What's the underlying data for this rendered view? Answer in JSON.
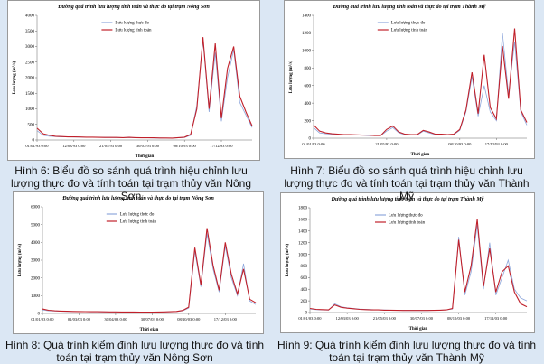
{
  "chart_data": [
    {
      "type": "line",
      "title": "Đường quá trình lưu lượng tính toán và thực đo tại trạm Nông Sơn",
      "x_label": "Thời gian",
      "y_label": "Lưu lượng (m³/s)",
      "categories": [
        "01/01/93 0:00",
        null,
        null,
        null,
        null,
        null,
        "12/03/93 0:00",
        null,
        null,
        null,
        null,
        null,
        "21/05/93 0:00",
        null,
        null,
        null,
        null,
        null,
        "30/07/93 0:00",
        null,
        null,
        null,
        null,
        null,
        "08/10/93 0:00",
        null,
        null,
        null,
        null,
        null,
        "17/12/93 0:00",
        null,
        null,
        null,
        null,
        null
      ],
      "series": [
        {
          "name": "Lưu lượng thực đo",
          "color": "#8fa8dc",
          "values": [
            300,
            150,
            120,
            110,
            100,
            100,
            95,
            90,
            90,
            85,
            85,
            80,
            80,
            75,
            75,
            80,
            70,
            70,
            70,
            65,
            65,
            60,
            60,
            70,
            80,
            150,
            1100,
            3200,
            900,
            2800,
            600,
            2000,
            2900,
            1200,
            800,
            400
          ]
        },
        {
          "name": "Lưu lượng tính toán",
          "color": "#c0202a",
          "values": [
            380,
            200,
            150,
            120,
            110,
            100,
            100,
            95,
            90,
            90,
            85,
            80,
            80,
            80,
            75,
            85,
            75,
            70,
            70,
            70,
            65,
            65,
            60,
            75,
            90,
            180,
            1000,
            3300,
            1000,
            3100,
            700,
            2300,
            3000,
            1400,
            900,
            450
          ]
        }
      ],
      "ylim": [
        0,
        4000
      ],
      "yticks": [
        0,
        500,
        1000,
        1500,
        2000,
        2500,
        3000,
        3500,
        4000
      ],
      "legend": "upper center"
    },
    {
      "type": "line",
      "title": "Đường quá trình lưu lượng tính toán và thực đo tại trạm Thành Mỹ",
      "x_label": "Thời gian",
      "y_label": "Lưu lượng (m³/s)",
      "categories": [
        "01/01/93 0:00",
        null,
        null,
        null,
        null,
        null,
        null,
        null,
        null,
        null,
        null,
        null,
        "21/05/93 0:00",
        null,
        null,
        null,
        null,
        null,
        null,
        null,
        null,
        null,
        null,
        null,
        "08/10/93 0:00",
        null,
        null,
        null,
        null,
        null,
        "17/12/93 0:00",
        null,
        null,
        null,
        null,
        null
      ],
      "series": [
        {
          "name": "Lưu lượng thực đo",
          "color": "#8fa8dc",
          "values": [
            120,
            60,
            50,
            45,
            40,
            40,
            38,
            35,
            35,
            30,
            30,
            30,
            80,
            120,
            60,
            40,
            35,
            35,
            80,
            60,
            40,
            40,
            35,
            40,
            90,
            300,
            700,
            250,
            600,
            300,
            200,
            1200,
            500,
            1100,
            300,
            150
          ]
        },
        {
          "name": "Lưu lượng tính toán",
          "color": "#c0202a",
          "values": [
            150,
            80,
            60,
            50,
            45,
            40,
            40,
            38,
            35,
            35,
            30,
            30,
            100,
            140,
            70,
            45,
            40,
            40,
            90,
            70,
            45,
            45,
            40,
            45,
            100,
            320,
            750,
            280,
            950,
            350,
            220,
            1050,
            450,
            1250,
            320,
            180
          ]
        }
      ],
      "ylim": [
        0,
        1400
      ],
      "yticks": [
        0,
        200,
        400,
        600,
        800,
        1000,
        1200,
        1400
      ],
      "legend": "upper center"
    },
    {
      "type": "line",
      "title": "Đường quá trình lưu lượng tính toán và thực đo tại trạm Nông Sơn",
      "x_label": "Thời gian",
      "y_label": "Lưu lượng (m³/s)",
      "categories": [
        "01/01/03 0:00",
        null,
        null,
        null,
        null,
        null,
        "01/03/03 0:00",
        null,
        null,
        null,
        null,
        null,
        "30/04/03 0:00",
        null,
        null,
        null,
        null,
        null,
        "30/07/03 0:00",
        null,
        null,
        null,
        null,
        null,
        "08/10/03 0:00",
        null,
        null,
        null,
        null,
        null,
        "17/12/03 0:00",
        null,
        null,
        null,
        null,
        null
      ],
      "series": [
        {
          "name": "Lưu lượng thực đo",
          "color": "#8fa8dc",
          "values": [
            200,
            150,
            130,
            120,
            110,
            100,
            100,
            95,
            90,
            90,
            85,
            80,
            80,
            80,
            75,
            75,
            70,
            70,
            70,
            75,
            80,
            90,
            100,
            150,
            300,
            3500,
            1500,
            4500,
            2500,
            1200,
            3800,
            2000,
            1000,
            2800,
            700,
            500
          ]
        },
        {
          "name": "Lưu lượng tính toán",
          "color": "#c0202a",
          "values": [
            250,
            180,
            150,
            130,
            120,
            110,
            105,
            100,
            95,
            95,
            90,
            85,
            85,
            80,
            80,
            80,
            75,
            75,
            75,
            80,
            85,
            95,
            110,
            170,
            350,
            3700,
            1600,
            4800,
            2700,
            1300,
            4000,
            2200,
            1100,
            2500,
            800,
            600
          ]
        }
      ],
      "ylim": [
        0,
        6000
      ],
      "yticks": [
        0,
        1000,
        2000,
        3000,
        4000,
        5000,
        6000
      ],
      "legend": "upper center"
    },
    {
      "type": "line",
      "title": "Đường quá trình lưu lượng tính toán và thực đo tại trạm Thành Mỹ",
      "x_label": "Thời gian",
      "y_label": "Lưu lượng (m³/s)",
      "categories": [
        "01/01/03 0:00",
        null,
        null,
        null,
        null,
        null,
        "12/03/03 0:00",
        null,
        null,
        null,
        null,
        null,
        "21/05/03 0:00",
        null,
        null,
        null,
        null,
        null,
        "30/07/03 0:00",
        null,
        null,
        null,
        null,
        null,
        "08/10/03 0:00",
        null,
        null,
        null,
        null,
        null,
        "17/12/03 0:00",
        null,
        null,
        null,
        null,
        null
      ],
      "series": [
        {
          "name": "Lưu lượng thực đo",
          "color": "#8fa8dc",
          "values": [
            60,
            50,
            45,
            40,
            150,
            100,
            80,
            70,
            60,
            55,
            50,
            45,
            45,
            40,
            40,
            35,
            35,
            35,
            35,
            35,
            40,
            40,
            45,
            60,
            1300,
            300,
            700,
            1500,
            400,
            1200,
            300,
            600,
            900,
            400,
            250,
            200
          ]
        },
        {
          "name": "Lưu lượng tính toán",
          "color": "#c0202a",
          "values": [
            70,
            55,
            50,
            45,
            130,
            90,
            75,
            65,
            55,
            50,
            45,
            45,
            40,
            40,
            38,
            35,
            35,
            35,
            35,
            35,
            38,
            40,
            45,
            70,
            1250,
            350,
            800,
            1600,
            450,
            1100,
            350,
            700,
            800,
            350,
            150,
            100
          ]
        }
      ],
      "ylim": [
        0,
        1800
      ],
      "yticks": [
        0,
        200,
        400,
        600,
        800,
        1000,
        1200,
        1400,
        1600,
        1800
      ],
      "legend": "upper center"
    }
  ],
  "captions": [
    "Hình 6: Biểu đồ so sánh quá trình hiệu chỉnh lưu lượng thực đo và tính toán tại trạm thủy văn Nông Sơn",
    "Hình 7: Biểu đồ so sánh quá trình hiệu chỉnh lưu lượng thực đo và tính toán tại trạm thủy văn Thành Mỹ",
    "Hình 8: Quá trình kiểm định lưu lượng thực đo và tính toán tại trạm thủy văn Nông Sơn",
    "Hình 9: Quá trình kiểm định lưu lượng thực đo và tính toán tại trạm thủy văn Thành Mỹ"
  ]
}
